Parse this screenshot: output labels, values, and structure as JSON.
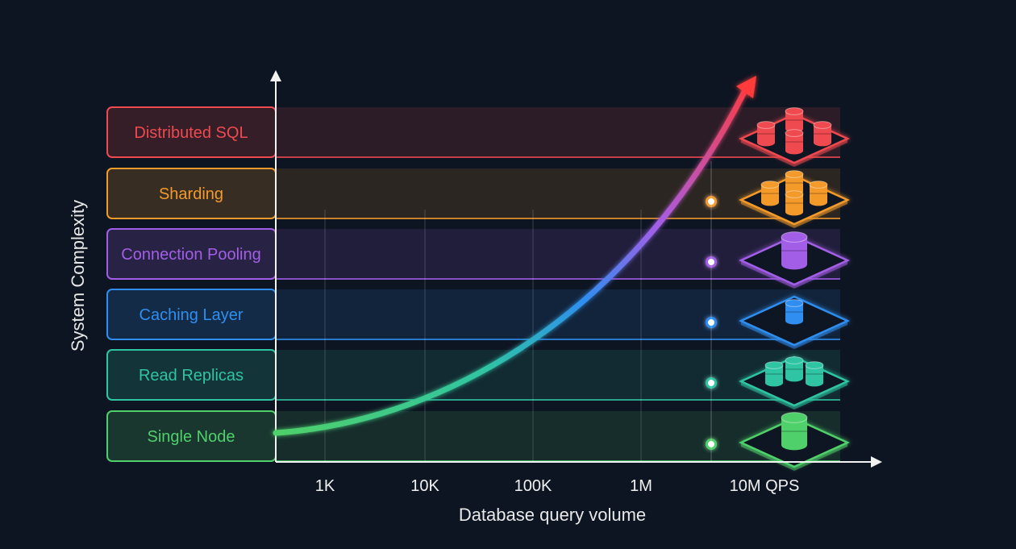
{
  "chart_data": {
    "type": "diagram",
    "ylabel": "System Complexity",
    "xlabel": "Database query volume",
    "x_ticks": [
      "1K",
      "10K",
      "100K",
      "1M",
      "10M QPS"
    ],
    "tiers": [
      {
        "label": "Distributed SQL",
        "color": "#ef4a4f",
        "icon": "distributed-database-cluster-icon"
      },
      {
        "label": "Sharding",
        "color": "#f39a2a",
        "icon": "sharded-database-icon"
      },
      {
        "label": "Connection Pooling",
        "color": "#a35ee8",
        "icon": "database-pool-icon"
      },
      {
        "label": "Caching Layer",
        "color": "#2f8ef0",
        "icon": "cache-blocks-icon"
      },
      {
        "label": "Read Replicas",
        "color": "#2fc4a4",
        "icon": "replica-databases-icon"
      },
      {
        "label": "Single Node",
        "color": "#4fd06a",
        "icon": "single-database-icon"
      }
    ],
    "curve": "exponential growth from Single Node to Distributed SQL",
    "grid": true
  }
}
